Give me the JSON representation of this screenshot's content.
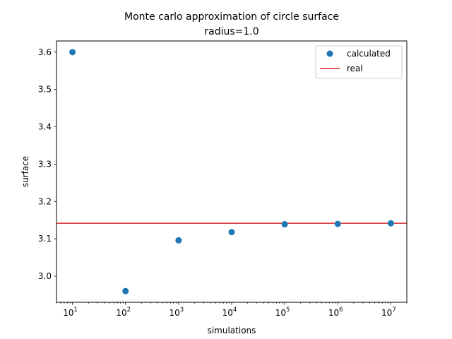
{
  "chart_data": {
    "type": "scatter",
    "title": "Monte carlo approximation of circle surface",
    "subtitle": "radius=1.0",
    "xlabel": "simulations",
    "ylabel": "surface",
    "x_scale": "log",
    "xlim": [
      5,
      20000000
    ],
    "ylim": [
      2.93,
      3.63
    ],
    "x_ticks": [
      {
        "value": 10,
        "base": "10",
        "exp": "1"
      },
      {
        "value": 100,
        "base": "10",
        "exp": "2"
      },
      {
        "value": 1000,
        "base": "10",
        "exp": "3"
      },
      {
        "value": 10000,
        "base": "10",
        "exp": "4"
      },
      {
        "value": 100000,
        "base": "10",
        "exp": "5"
      },
      {
        "value": 1000000,
        "base": "10",
        "exp": "6"
      },
      {
        "value": 10000000,
        "base": "10",
        "exp": "7"
      }
    ],
    "y_ticks": [
      "3.0",
      "3.1",
      "3.2",
      "3.3",
      "3.4",
      "3.5",
      "3.6"
    ],
    "grid": false,
    "legend_position": "top-right",
    "series": [
      {
        "name": "calculated",
        "kind": "scatter",
        "color": "#1f77b4",
        "x": [
          10,
          100,
          1000,
          10000,
          100000,
          1000000,
          10000000
        ],
        "y": [
          3.6,
          2.96,
          3.096,
          3.118,
          3.139,
          3.14,
          3.1415
        ]
      },
      {
        "name": "real",
        "kind": "hline",
        "color": "#d62728",
        "y": 3.14159
      }
    ]
  }
}
